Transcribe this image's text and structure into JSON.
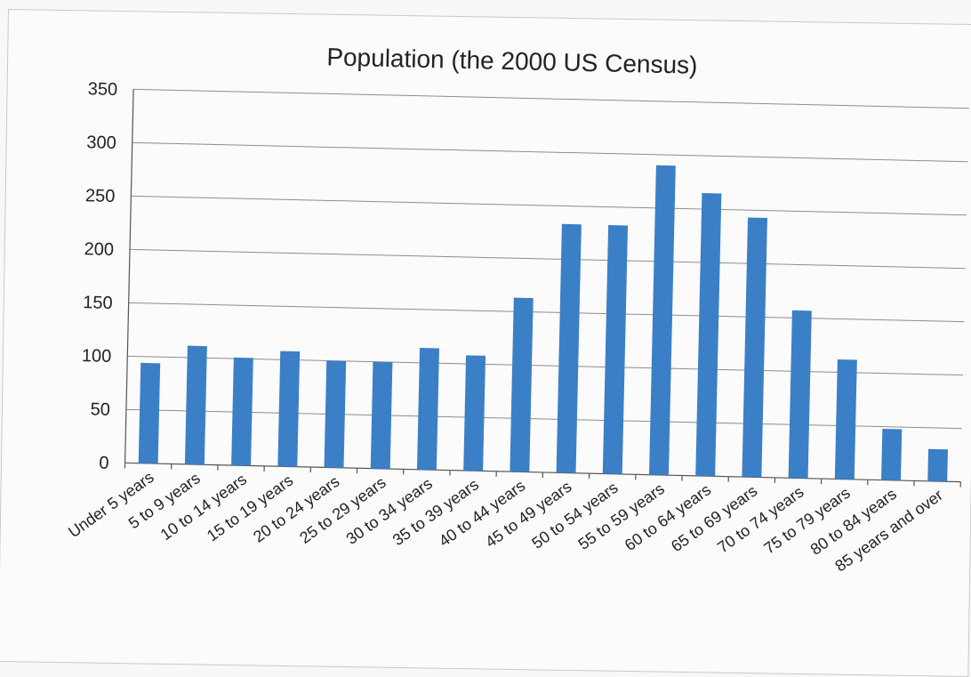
{
  "chart_data": {
    "type": "bar",
    "title": "Population (the 2000 US Census)",
    "xlabel": "",
    "ylabel": "",
    "ylim": [
      0,
      350
    ],
    "yticks": [
      "0",
      "50",
      "100",
      "150",
      "200",
      "250",
      "300",
      "350"
    ],
    "grid": true,
    "categories": [
      "Under 5 years",
      "5 to 9 years",
      "10 to 14 years",
      "15 to 19 years",
      "20 to 24 years",
      "25 to 29 years",
      "30 to 34 years",
      "35 to 39 years",
      "40 to 44 years",
      "45 to 49 years",
      "50 to 54 years",
      "55 to 59 years",
      "60 to 64 years",
      "65 to 69 years",
      "70 to 74 years",
      "75 to 79 years",
      "80 to 84 years",
      "85 years and over"
    ],
    "values": [
      94,
      111,
      101,
      108,
      100,
      100,
      114,
      108,
      163,
      233,
      233,
      290,
      265,
      243,
      157,
      112,
      48,
      30
    ],
    "bar_color": "#3b7fc7",
    "grid_color": "#8d8d8d",
    "text_color": "#222222"
  }
}
